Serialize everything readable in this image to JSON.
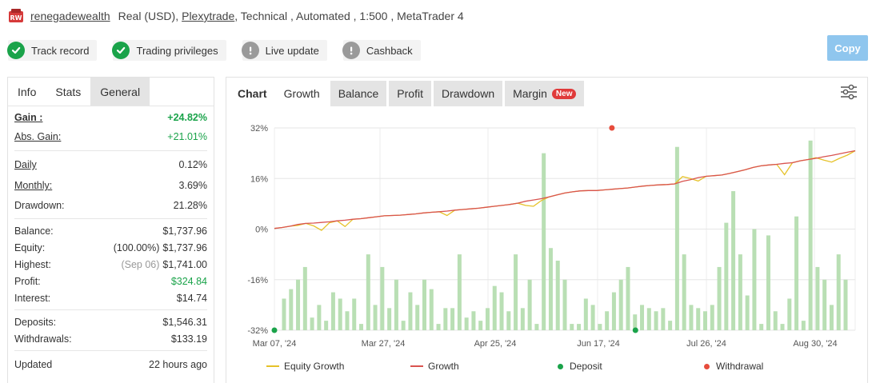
{
  "header": {
    "account_name": "renegadewealth",
    "account_type": "Real (USD),",
    "broker": "Plexytrade",
    "details": ", Technical , Automated , 1:500 , MetaTrader 4"
  },
  "badges": [
    {
      "label": "Track record",
      "status": "ok"
    },
    {
      "label": "Trading privileges",
      "status": "ok"
    },
    {
      "label": "Live update",
      "status": "warn"
    },
    {
      "label": "Cashback",
      "status": "warn"
    }
  ],
  "copy_label": "Copy",
  "left_tabs": [
    "Info",
    "Stats",
    "General"
  ],
  "stats": {
    "gain": {
      "label": "Gain :",
      "value": "+24.82%"
    },
    "abs_gain": {
      "label": "Abs. Gain:",
      "value": "+21.01%"
    },
    "daily": {
      "label": "Daily",
      "value": "0.12%"
    },
    "monthly": {
      "label": "Monthly:",
      "value": "3.69%"
    },
    "drawdown": {
      "label": "Drawdown:",
      "value": "21.28%"
    },
    "balance": {
      "label": "Balance:",
      "value": "$1,737.96"
    },
    "equity": {
      "label": "Equity:",
      "pct": "(100.00%)",
      "value": "$1,737.96"
    },
    "highest": {
      "label": "Highest:",
      "date": "(Sep 06)",
      "value": "$1,741.00"
    },
    "profit": {
      "label": "Profit:",
      "value": "$324.84"
    },
    "interest": {
      "label": "Interest:",
      "value": "$14.74"
    },
    "deposits": {
      "label": "Deposits:",
      "value": "$1,546.31"
    },
    "withdrawals": {
      "label": "Withdrawals:",
      "value": "$133.19"
    },
    "updated": {
      "label": "Updated",
      "value": "22 hours ago"
    }
  },
  "right_tabs": {
    "chart": "Chart",
    "growth": "Growth",
    "balance": "Balance",
    "profit": "Profit",
    "drawdown": "Drawdown",
    "margin": "Margin",
    "new_badge": "New"
  },
  "colors": {
    "green": "#1aa34a",
    "equity_line": "#e6c229",
    "growth_line": "#d9534f",
    "bar": "#b9dfb4",
    "deposit": "#1aa34a",
    "withdrawal": "#e74c3c",
    "copy_button": "#8fc6ee"
  },
  "chart_data": {
    "type": "line",
    "y_ticks": [
      "32%",
      "16%",
      "0%",
      "-16%",
      "-32%"
    ],
    "ylim": [
      -32,
      32
    ],
    "x_ticks": [
      "Mar 07, '24",
      "Mar 27, '24",
      "Apr 25, '24",
      "Jun 17, '24",
      "Jul 26, '24",
      "Aug 30, '24"
    ],
    "legend": [
      "Equity Growth",
      "Growth",
      "Deposit",
      "Withdrawal"
    ],
    "growth": [
      0.2,
      0.5,
      0.9,
      1.5,
      1.8,
      1.9,
      2.1,
      2.3,
      2.6,
      2.8,
      3.1,
      3.3,
      3.6,
      3.9,
      4.2,
      4.3,
      4.4,
      4.6,
      4.8,
      5.1,
      5.3,
      5.5,
      5.7,
      6.0,
      6.2,
      6.4,
      6.6,
      6.9,
      7.2,
      7.5,
      7.8,
      8.2,
      8.8,
      9.2,
      9.6,
      10.2,
      10.8,
      11.4,
      11.8,
      12.1,
      12.2,
      12.2,
      12.4,
      12.6,
      12.8,
      13.0,
      13.3,
      13.6,
      13.8,
      14.0,
      14.1,
      14.3,
      15.1,
      15.6,
      16.3,
      16.7,
      16.9,
      17.1,
      17.6,
      18.2,
      18.8,
      19.5,
      20.0,
      20.3,
      20.5,
      20.8,
      21.0,
      21.6,
      22.0,
      22.4,
      22.9,
      23.3,
      23.8,
      24.3,
      24.8
    ],
    "equity": [
      0.2,
      0.5,
      0.9,
      1.2,
      1.8,
      1.0,
      -0.4,
      2.0,
      2.6,
      0.8,
      3.1,
      3.3,
      3.6,
      3.9,
      4.2,
      4.3,
      4.4,
      4.6,
      4.8,
      5.1,
      5.3,
      5.5,
      4.3,
      6.0,
      6.2,
      6.4,
      6.6,
      6.9,
      7.2,
      7.5,
      7.8,
      8.2,
      7.5,
      7.2,
      9.0,
      10.2,
      10.8,
      11.4,
      11.8,
      12.1,
      12.2,
      12.2,
      12.4,
      12.6,
      12.8,
      13.0,
      13.3,
      13.6,
      13.8,
      14.0,
      14.1,
      14.3,
      16.6,
      16.0,
      15.2,
      16.7,
      16.9,
      17.1,
      17.6,
      18.2,
      18.8,
      19.5,
      20.0,
      20.3,
      20.5,
      17.2,
      21.0,
      21.6,
      22.0,
      22.6,
      21.8,
      21.2,
      22.4,
      23.4,
      24.8
    ],
    "bars": [
      -22,
      -19,
      -16,
      -12,
      -28,
      -24,
      -29,
      -20,
      -22,
      -26,
      -22,
      -30,
      -8,
      -24,
      -12,
      -25,
      -16,
      -29,
      -20,
      -24,
      -16,
      -19,
      -30,
      -25,
      -25,
      -8,
      -28,
      -26,
      -29,
      -25,
      -18,
      -20,
      -26,
      -8,
      -25,
      -16,
      -30,
      24,
      -6,
      -10,
      -16,
      -30,
      -30,
      -22,
      -24,
      -30,
      -26,
      -20,
      -16,
      -12,
      -27,
      -24,
      -25,
      -26,
      -25,
      -29,
      26,
      -8,
      -24,
      -25,
      -26,
      -24,
      -12,
      2,
      12,
      -8,
      -21,
      0,
      -30,
      -2,
      -26,
      -30,
      -22,
      4,
      -29,
      28,
      -12,
      -16,
      -24,
      -8,
      -16
    ],
    "deposits": [
      [
        0,
        -32
      ],
      [
        46,
        -32
      ]
    ],
    "withdrawals": [
      [
        43,
        32
      ]
    ]
  }
}
